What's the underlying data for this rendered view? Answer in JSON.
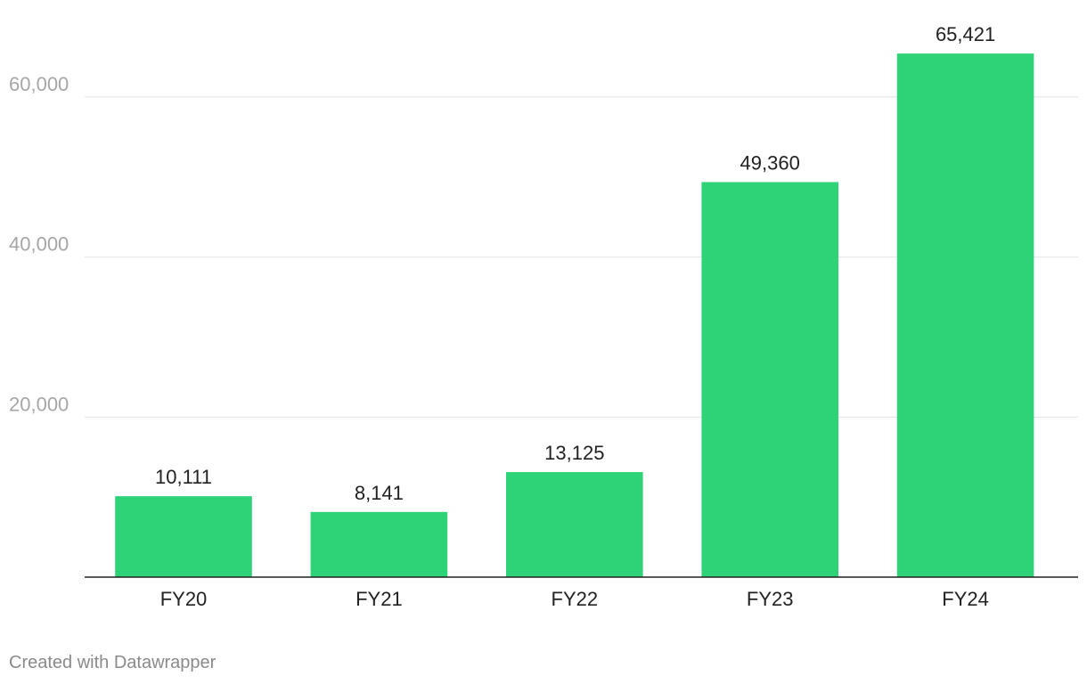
{
  "chart_data": {
    "type": "bar",
    "categories": [
      "FY20",
      "FY21",
      "FY22",
      "FY23",
      "FY24"
    ],
    "values": [
      10111,
      8141,
      13125,
      49360,
      65421
    ],
    "value_labels": [
      "10,111",
      "8,141",
      "13,125",
      "49,360",
      "65,421"
    ],
    "yticks": [
      20000,
      40000,
      60000
    ],
    "ytick_labels": [
      "20,000",
      "40,000",
      "60,000"
    ],
    "ylim": [
      0,
      71000
    ],
    "grid": true,
    "bar_color": "#2ed277"
  },
  "footer": {
    "credit": "Created with Datawrapper"
  }
}
